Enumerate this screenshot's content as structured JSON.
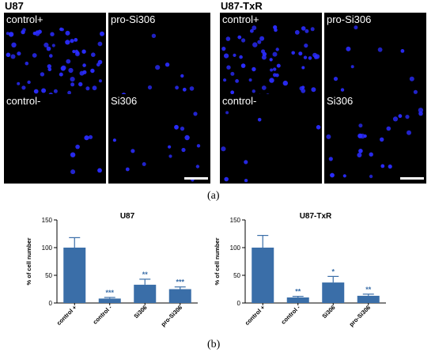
{
  "figure": {
    "part_a": {
      "groups": [
        {
          "title": "U87",
          "panels": [
            "control+",
            "pro-Si306",
            "control-",
            "Si306"
          ]
        },
        {
          "title": "U87-TxR",
          "panels": [
            "control+",
            "pro-Si306",
            "control-",
            "Si306"
          ]
        }
      ],
      "caption": "(a)"
    },
    "part_b": {
      "caption": "(b)"
    },
    "colors": {
      "nucleus": "#2a2cff",
      "bar": "#3a6ea8",
      "significance": "#3a6ea8"
    }
  },
  "chart_data": [
    {
      "type": "bar",
      "title": "U87",
      "ylabel": "% of cell number",
      "xlabel": "",
      "categories": [
        "control +",
        "control -",
        "Si306",
        "pro-Si306"
      ],
      "values": [
        100,
        8,
        33,
        25
      ],
      "errors": [
        18,
        2,
        10,
        4
      ],
      "significance": [
        "",
        "***",
        "**",
        "***"
      ],
      "ylim": [
        0,
        150
      ],
      "yticks": [
        0,
        50,
        100,
        150
      ]
    },
    {
      "type": "bar",
      "title": "U87-TxR",
      "ylabel": "% of cell number",
      "xlabel": "",
      "categories": [
        "control +",
        "control -",
        "Si306",
        "pro-Si306"
      ],
      "values": [
        100,
        10,
        37,
        13
      ],
      "errors": [
        22,
        2,
        11,
        3
      ],
      "significance": [
        "",
        "**",
        "*",
        "**"
      ],
      "ylim": [
        0,
        150
      ],
      "yticks": [
        0,
        50,
        100,
        150
      ]
    }
  ]
}
